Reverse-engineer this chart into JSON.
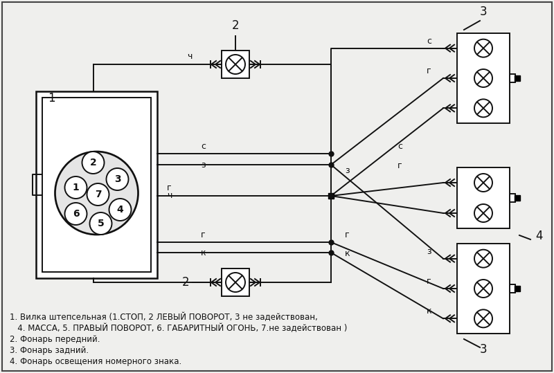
{
  "bg_color": "#efefed",
  "line_color": "#111111",
  "legend_lines": [
    "1. Вилка штепсельная (1.СТОП, 2 ЛЕВЫЙ ПОВОРОТ, 3 не задействован,",
    "   4. МАССА, 5. ПРАВЫЙ ПОВОРОТ, 6. ГАБАРИТНЫЙ ОГОНЬ, 7.не задействован )",
    "2. Фонарь передний.",
    "3. Фонарь задний.",
    "4. Фонарь освещения номерного знака."
  ]
}
